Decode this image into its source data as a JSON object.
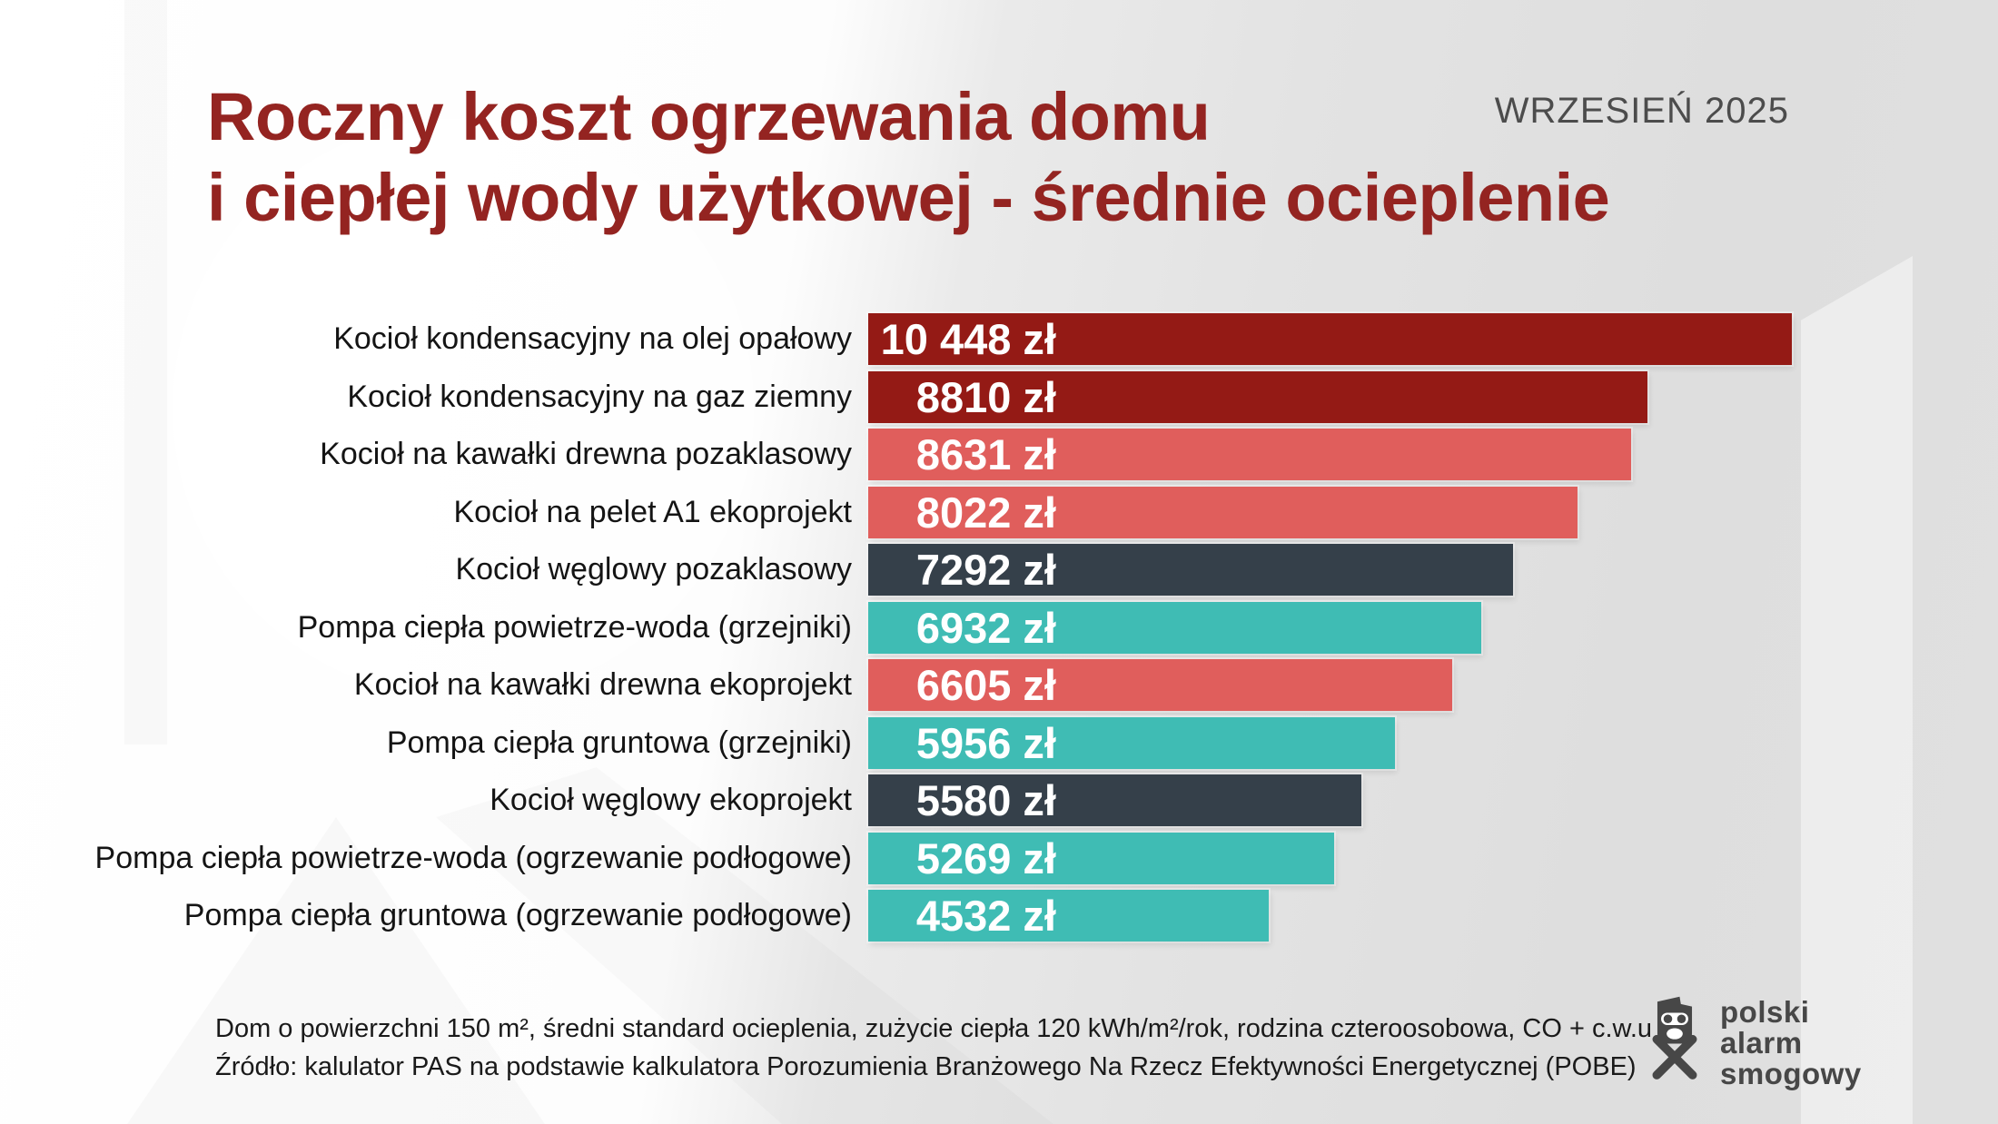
{
  "header": {
    "title_line1": "Roczny koszt ogrzewania domu",
    "title_line2": "i ciepłej wody użytkowej - średnie ocieplenie",
    "date_label": "WRZESIEŃ 2025"
  },
  "chart_data": {
    "type": "bar",
    "orientation": "horizontal",
    "title": "Roczny koszt ogrzewania domu i ciepłej wody użytkowej - średnie ocieplenie",
    "unit": "zł",
    "xlim": [
      0,
      10448
    ],
    "max_value": 10448,
    "grid": false,
    "legend": false,
    "palette": {
      "dark_red": "#941a15",
      "salmon": "#e05e5c",
      "slate": "#35404a",
      "teal": "#3fbcb4"
    },
    "rows": [
      {
        "label": "Kocioł kondensacyjny na olej opałowy",
        "value": 10448,
        "value_label": "10 448 zł",
        "color": "dark_red"
      },
      {
        "label": "Kocioł kondensacyjny na gaz ziemny",
        "value": 8810,
        "value_label": "8810 zł",
        "color": "dark_red"
      },
      {
        "label": "Kocioł na kawałki drewna pozaklasowy",
        "value": 8631,
        "value_label": "8631 zł",
        "color": "salmon"
      },
      {
        "label": "Kocioł na pelet A1 ekoprojekt",
        "value": 8022,
        "value_label": "8022 zł",
        "color": "salmon"
      },
      {
        "label": "Kocioł węglowy pozaklasowy",
        "value": 7292,
        "value_label": "7292 zł",
        "color": "slate"
      },
      {
        "label": "Pompa ciepła powietrze-woda (grzejniki)",
        "value": 6932,
        "value_label": "6932 zł",
        "color": "teal"
      },
      {
        "label": "Kocioł na kawałki drewna ekoprojekt",
        "value": 6605,
        "value_label": "6605 zł",
        "color": "salmon"
      },
      {
        "label": "Pompa ciepła gruntowa (grzejniki)",
        "value": 5956,
        "value_label": "5956 zł",
        "color": "teal"
      },
      {
        "label": "Kocioł węglowy ekoprojekt",
        "value": 5580,
        "value_label": "5580 zł",
        "color": "slate"
      },
      {
        "label": "Pompa ciepła powietrze-woda (ogrzewanie podłogowe)",
        "value": 5269,
        "value_label": "5269 zł",
        "color": "teal"
      },
      {
        "label": "Pompa ciepła gruntowa (ogrzewanie podłogowe)",
        "value": 4532,
        "value_label": "4532 zł",
        "color": "teal"
      }
    ]
  },
  "footer": {
    "line1": "Dom o powierzchni 150 m², średni standard ocieplenia, zużycie ciepła 120 kWh/m²/rok, rodzina czteroosobowa, CO + c.w.u",
    "line2": "Źródło: kalulator PAS na podstawie kalkulatora Porozumienia Branżowego Na Rzecz Efektywności Energetycznej (POBE)"
  },
  "logo": {
    "line1": "polski",
    "line2": "alarm",
    "line3": "smogowy"
  },
  "colors": {
    "title_text": "#942421",
    "date_text": "#4c4c4c",
    "label_text": "#141414",
    "value_text": "#ffffff",
    "footer_text": "#1a1a1a",
    "logo_text": "#474747"
  }
}
